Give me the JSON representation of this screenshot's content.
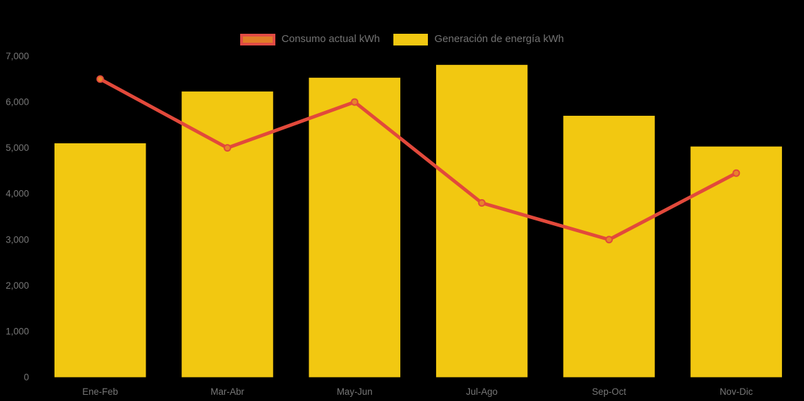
{
  "chart_data": {
    "type": "combo-bar-line",
    "categories": [
      "Ene-Feb",
      "Mar-Abr",
      "May-Jun",
      "Jul-Ago",
      "Sep-Oct",
      "Nov-Dic"
    ],
    "series": [
      {
        "name": "Consumo actual kWh",
        "type": "line",
        "color": "#e2493b",
        "marker_color": "#e8832b",
        "values": [
          6500,
          5000,
          6000,
          3800,
          3000,
          4450
        ]
      },
      {
        "name": "Generación de energía kWh",
        "type": "bar",
        "color": "#f2c811",
        "values": [
          5100,
          6230,
          6530,
          6810,
          5700,
          5030
        ]
      }
    ],
    "title": "",
    "xlabel": "",
    "ylabel": "",
    "ylim": [
      0,
      7000
    ],
    "ytick_step": 1000,
    "ytick_labels": [
      "0",
      "1,000",
      "2,000",
      "3,000",
      "4,000",
      "5,000",
      "6,000",
      "7,000"
    ],
    "grid": false,
    "legend_position": "top-center",
    "background": "#000000",
    "text_color": "#777777"
  },
  "legend": {
    "items": [
      {
        "label": "Consumo actual kWh",
        "swatch_fill": "#e07c28",
        "swatch_border": "#e14b44"
      },
      {
        "label": "Generación de energía kWh",
        "swatch_fill": "#f2c811",
        "swatch_border": "#f2c811"
      }
    ]
  }
}
